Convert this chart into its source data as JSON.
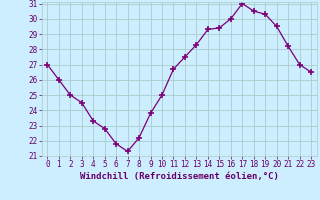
{
  "hours": [
    0,
    1,
    2,
    3,
    4,
    5,
    6,
    7,
    8,
    9,
    10,
    11,
    12,
    13,
    14,
    15,
    16,
    17,
    18,
    19,
    20,
    21,
    22,
    23
  ],
  "values": [
    27.0,
    26.0,
    25.0,
    24.5,
    23.3,
    22.8,
    21.8,
    21.3,
    22.2,
    23.8,
    25.0,
    26.7,
    27.5,
    28.3,
    29.3,
    29.4,
    30.0,
    31.0,
    30.5,
    30.3,
    29.5,
    28.2,
    27.0,
    26.5
  ],
  "line_color": "#7B0077",
  "marker": "+",
  "marker_size": 4,
  "marker_lw": 1.2,
  "bg_color": "#cceeff",
  "grid_color": "#aacccc",
  "xlabel": "Windchill (Refroidissement éolien,°C)",
  "ylim": [
    21,
    31
  ],
  "xlim": [
    -0.5,
    23.5
  ],
  "yticks": [
    21,
    22,
    23,
    24,
    25,
    26,
    27,
    28,
    29,
    30,
    31
  ],
  "xticks": [
    0,
    1,
    2,
    3,
    4,
    5,
    6,
    7,
    8,
    9,
    10,
    11,
    12,
    13,
    14,
    15,
    16,
    17,
    18,
    19,
    20,
    21,
    22,
    23
  ],
  "xlabel_fontsize": 6.5,
  "tick_fontsize": 5.5,
  "line_width": 0.9,
  "text_color": "#660066"
}
